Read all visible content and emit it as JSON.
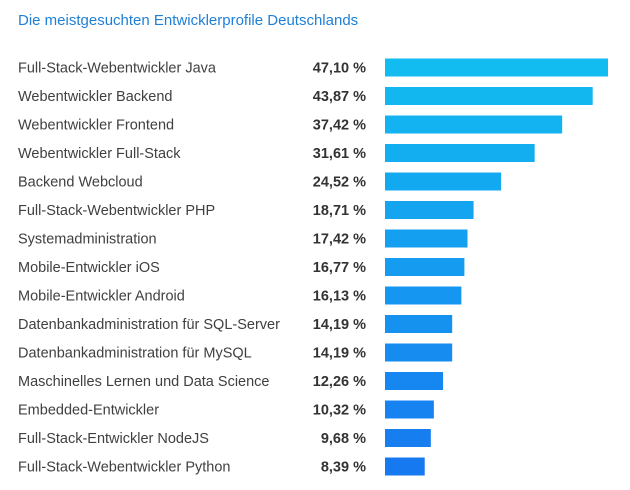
{
  "chart_data": {
    "type": "bar",
    "orientation": "horizontal",
    "title": "Die meistgesuchten Entwicklerprofile Deutschlands",
    "categories": [
      "Full-Stack-Webentwickler Java",
      "Webentwickler Backend",
      "Webentwickler Frontend",
      "Webentwickler Full-Stack",
      "Backend Webcloud",
      "Full-Stack-Webentwickler PHP",
      "Systemadministration",
      "Mobile-Entwickler iOS",
      "Mobile-Entwickler Android",
      "Datenbankadministration für SQL-Server",
      "Datenbankadministration für MySQL",
      "Maschinelles Lernen und Data Science",
      "Embedded-Entwickler",
      "Full-Stack-Entwickler NodeJS",
      "Full-Stack-Webentwickler Python"
    ],
    "values": [
      47.1,
      43.87,
      37.42,
      31.61,
      24.52,
      18.71,
      17.42,
      16.77,
      16.13,
      14.19,
      14.19,
      12.26,
      10.32,
      9.68,
      8.39
    ],
    "value_labels": [
      "47,10 %",
      "43,87 %",
      "37,42 %",
      "31,61 %",
      "24,52 %",
      "18,71 %",
      "17,42 %",
      "16,77 %",
      "16,13 %",
      "14,19 %",
      "14,19 %",
      "12,26 %",
      "10,32 %",
      "9,68 %",
      "8,39 %"
    ],
    "unit": "%",
    "xlim": [
      0,
      47.1
    ],
    "grid": false,
    "legend": "none",
    "colors": {
      "title": "#1f7fd6",
      "bar_top": "#12bcf0",
      "bar_bottom": "#1779f0",
      "category_text": "#404040",
      "value_text": "#333333"
    }
  }
}
